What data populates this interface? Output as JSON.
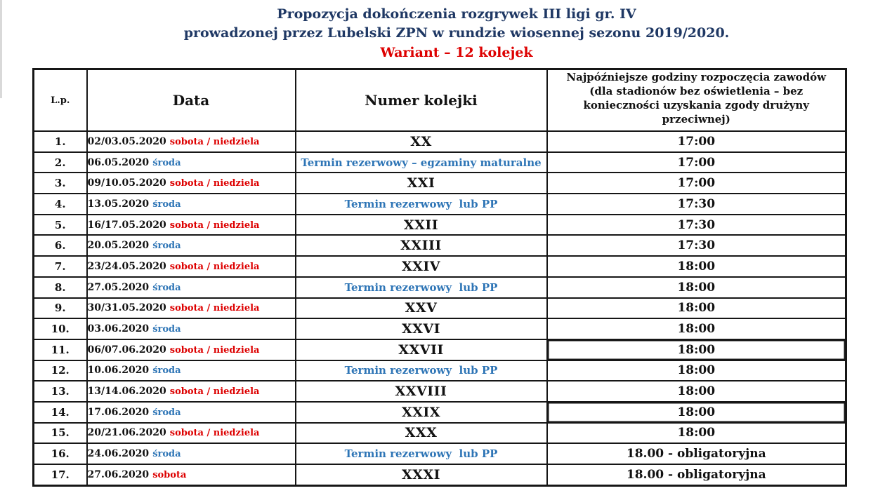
{
  "title": {
    "line1": "Propozycja dokończenia rozgrywek III ligi gr. IV",
    "line2": "prowadzonej przez Lubelski ZPN w rundzie wiosennej sezonu 2019/2020.",
    "variant": "Wariant – 12 kolejek"
  },
  "colors": {
    "title_navy": "#1f3864",
    "accent_red": "#dd0000",
    "accent_blue": "#2e75b6",
    "text_black": "#121212",
    "table_border": "#161616"
  },
  "table": {
    "headers": {
      "lp": "L.p.",
      "date": "Data",
      "round": "Numer kolejki",
      "time": "Najpóźniejsze godziny rozpoczęcia zawodów\n(dla stadionów bez oświetlenia – bez\nkonieczności uzyskania zgody drużyny\nprzeciwnej)"
    },
    "rows": [
      {
        "lp": "1.",
        "date": "02/03.05.2020",
        "day": "sobota / niedziela",
        "day_color": "red",
        "round": "XX",
        "round_type": "round",
        "time": "17:00"
      },
      {
        "lp": "2.",
        "date": "06.05.2020",
        "day": "środa",
        "day_color": "blue",
        "round": "Termin rezerwowy – egzaminy maturalne",
        "round_type": "reserve",
        "time": "17:00"
      },
      {
        "lp": "3.",
        "date": "09/10.05.2020",
        "day": "sobota / niedziela",
        "day_color": "red",
        "round": "XXI",
        "round_type": "round",
        "time": "17:00"
      },
      {
        "lp": "4.",
        "date": "13.05.2020",
        "day": "środa",
        "day_color": "blue",
        "round": "Termin rezerwowy  lub PP",
        "round_type": "reserve",
        "time": "17:30"
      },
      {
        "lp": "5.",
        "date": "16/17.05.2020",
        "day": "sobota / niedziela",
        "day_color": "red",
        "round": "XXII",
        "round_type": "round",
        "time": "17:30"
      },
      {
        "lp": "6.",
        "date": "20.05.2020",
        "day": "środa",
        "day_color": "blue",
        "round": "XXIII",
        "round_type": "round",
        "time": "17:30"
      },
      {
        "lp": "7.",
        "date": "23/24.05.2020",
        "day": "sobota / niedziela",
        "day_color": "red",
        "round": "XXIV",
        "round_type": "round",
        "time": "18:00"
      },
      {
        "lp": "8.",
        "date": "27.05.2020",
        "day": "środa",
        "day_color": "blue",
        "round": "Termin rezerwowy  lub PP",
        "round_type": "reserve",
        "time": "18:00"
      },
      {
        "lp": "9.",
        "date": "30/31.05.2020",
        "day": "sobota / niedziela",
        "day_color": "red",
        "round": "XXV",
        "round_type": "round",
        "time": "18:00"
      },
      {
        "lp": "10.",
        "date": "03.06.2020",
        "day": "środa",
        "day_color": "blue",
        "round": "XXVI",
        "round_type": "round",
        "time": "18:00"
      },
      {
        "lp": "11.",
        "date": "06/07.06.2020",
        "day": "sobota / niedziela",
        "day_color": "red",
        "round": "XXVII",
        "round_type": "round",
        "time": "18:00",
        "boxed": true
      },
      {
        "lp": "12.",
        "date": "10.06.2020",
        "day": "środa",
        "day_color": "blue",
        "round": "Termin rezerwowy  lub PP",
        "round_type": "reserve",
        "time": "18:00"
      },
      {
        "lp": "13.",
        "date": "13/14.06.2020",
        "day": "sobota / niedziela",
        "day_color": "red",
        "round": "XXVIII",
        "round_type": "round",
        "time": "18:00"
      },
      {
        "lp": "14.",
        "date": "17.06.2020",
        "day": "środa",
        "day_color": "blue",
        "round": "XXIX",
        "round_type": "round",
        "time": "18:00",
        "boxed": true
      },
      {
        "lp": "15.",
        "date": "20/21.06.2020",
        "day": "sobota / niedziela",
        "day_color": "red",
        "round": "XXX",
        "round_type": "round",
        "time": "18:00"
      },
      {
        "lp": "16.",
        "date": "24.06.2020",
        "day": "środa",
        "day_color": "blue",
        "round": "Termin rezerwowy  lub PP",
        "round_type": "reserve",
        "time": "18.00 - obligatoryjna"
      },
      {
        "lp": "17.",
        "date": "27.06.2020",
        "day": "sobota",
        "day_color": "red",
        "round": "XXXI",
        "round_type": "round",
        "time": "18.00 - obligatoryjna"
      }
    ]
  }
}
